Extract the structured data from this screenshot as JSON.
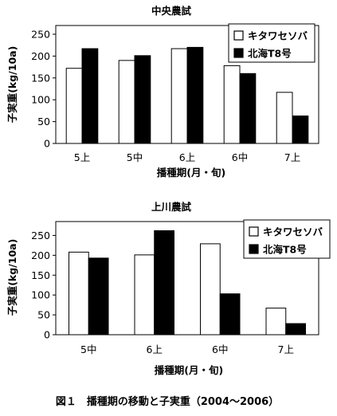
{
  "chart_data": [
    {
      "type": "bar",
      "title": "中央農試",
      "categories": [
        "5上",
        "5中",
        "6上",
        "6中",
        "7上"
      ],
      "series": [
        {
          "name": "キタワセソバ",
          "values": [
            172,
            190,
            217,
            178,
            117
          ],
          "color": "#ffffff"
        },
        {
          "name": "北海T8号",
          "values": [
            217,
            201,
            220,
            160,
            63
          ],
          "color": "#000000"
        }
      ],
      "yticks": [
        "0",
        "50",
        "100",
        "150",
        "200",
        "250"
      ],
      "ylim": [
        0,
        270
      ],
      "ylabel": "子実重(kg/10a)",
      "xlabel": "播種期(月・旬)",
      "legend": "top-right",
      "grid": false
    },
    {
      "type": "bar",
      "title": "上川農試",
      "categories": [
        "5中",
        "6上",
        "6中",
        "7上"
      ],
      "series": [
        {
          "name": "キタワセソバ",
          "values": [
            208,
            201,
            229,
            67
          ],
          "color": "#ffffff"
        },
        {
          "name": "北海T8号",
          "values": [
            193,
            262,
            103,
            28
          ],
          "color": "#000000"
        }
      ],
      "yticks": [
        "0",
        "50",
        "100",
        "150",
        "200",
        "250"
      ],
      "ylim": [
        0,
        285
      ],
      "ylabel": "子実重(kg/10a)",
      "xlabel": "播種期(月・旬)",
      "legend": "top-right",
      "grid": false
    }
  ],
  "caption": "図１　播種期の移動と子実重（2004～2006）"
}
